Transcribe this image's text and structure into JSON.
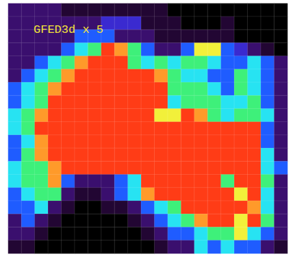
{
  "chart_data": {
    "type": "heatmap",
    "title": "GFED3d x 5",
    "tick_labels": false,
    "zlim": [
      0,
      9
    ],
    "cells": [
      [
        2,
        2,
        2,
        2,
        1,
        1,
        1,
        1,
        1,
        1,
        1,
        1,
        0,
        0,
        0,
        0,
        0,
        0,
        0,
        0,
        0
      ],
      [
        2,
        2,
        2,
        2,
        2,
        2,
        2,
        3,
        3,
        3,
        1,
        1,
        1,
        0,
        0,
        0,
        1,
        0,
        0,
        0,
        0
      ],
      [
        2,
        2,
        2,
        2,
        2,
        4,
        4,
        4,
        2,
        2,
        2,
        1,
        1,
        1,
        1,
        1,
        1,
        0,
        0,
        0,
        0
      ],
      [
        2,
        2,
        2,
        2,
        4,
        5,
        6,
        9,
        8,
        6,
        4,
        2,
        2,
        4,
        7,
        7,
        4,
        3,
        2,
        1,
        0
      ],
      [
        2,
        2,
        4,
        5,
        6,
        8,
        9,
        9,
        9,
        6,
        5,
        6,
        5,
        6,
        6,
        5,
        4,
        4,
        5,
        4,
        2
      ],
      [
        2,
        4,
        5,
        6,
        8,
        9,
        9,
        9,
        9,
        9,
        9,
        8,
        6,
        5,
        5,
        4,
        4,
        6,
        5,
        4,
        2
      ],
      [
        4,
        5,
        6,
        8,
        9,
        9,
        9,
        9,
        9,
        9,
        9,
        9,
        6,
        6,
        6,
        5,
        4,
        6,
        5,
        4,
        2
      ],
      [
        4,
        5,
        6,
        9,
        9,
        9,
        9,
        9,
        9,
        9,
        9,
        9,
        5,
        6,
        6,
        6,
        5,
        5,
        6,
        4,
        2
      ],
      [
        5,
        6,
        8,
        9,
        9,
        9,
        9,
        9,
        9,
        9,
        9,
        7,
        7,
        9,
        8,
        6,
        5,
        6,
        6,
        5,
        2
      ],
      [
        5,
        6,
        9,
        9,
        9,
        9,
        9,
        9,
        9,
        9,
        9,
        9,
        9,
        9,
        9,
        9,
        9,
        9,
        9,
        4,
        2
      ],
      [
        4,
        5,
        8,
        9,
        9,
        9,
        9,
        9,
        9,
        9,
        9,
        9,
        9,
        9,
        9,
        9,
        9,
        9,
        9,
        4,
        2
      ],
      [
        4,
        6,
        8,
        9,
        9,
        9,
        9,
        9,
        9,
        9,
        9,
        9,
        9,
        9,
        9,
        9,
        9,
        9,
        9,
        5,
        2
      ],
      [
        5,
        6,
        6,
        8,
        9,
        9,
        9,
        9,
        9,
        9,
        9,
        9,
        9,
        9,
        9,
        9,
        9,
        9,
        9,
        5,
        4
      ],
      [
        5,
        6,
        6,
        8,
        4,
        2,
        2,
        2,
        4,
        5,
        9,
        9,
        9,
        9,
        9,
        9,
        6,
        9,
        9,
        6,
        2
      ],
      [
        4,
        5,
        6,
        6,
        2,
        1,
        1,
        2,
        4,
        5,
        8,
        9,
        9,
        9,
        9,
        9,
        9,
        7,
        9,
        5,
        2
      ],
      [
        4,
        4,
        5,
        2,
        1,
        0,
        0,
        1,
        1,
        2,
        4,
        5,
        6,
        9,
        9,
        9,
        9,
        9,
        8,
        5,
        2
      ],
      [
        2,
        4,
        2,
        1,
        0,
        0,
        0,
        0,
        0,
        1,
        2,
        4,
        5,
        6,
        8,
        9,
        9,
        7,
        9,
        6,
        2
      ],
      [
        2,
        2,
        1,
        0,
        0,
        0,
        0,
        0,
        0,
        0,
        1,
        2,
        4,
        4,
        5,
        6,
        6,
        7,
        5,
        4,
        2
      ],
      [
        1,
        1,
        0,
        0,
        0,
        0,
        0,
        0,
        0,
        0,
        0,
        1,
        2,
        2,
        5,
        4,
        5,
        4,
        4,
        2,
        1
      ]
    ]
  }
}
